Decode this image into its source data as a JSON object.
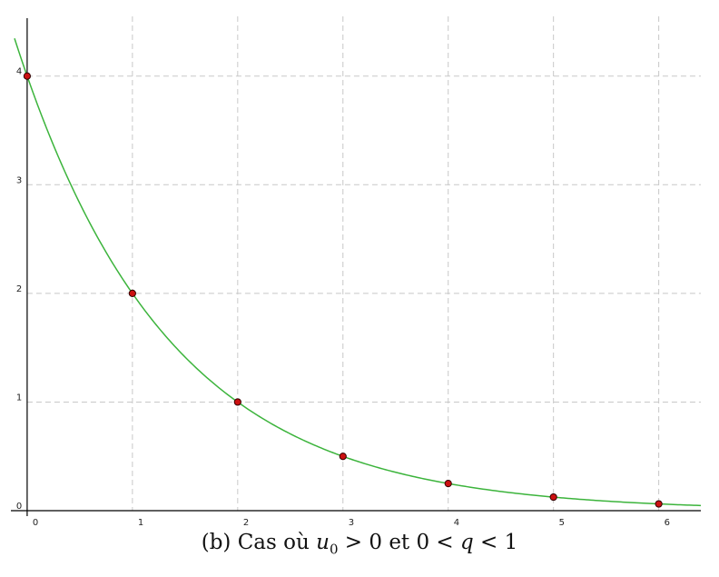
{
  "chart_data": {
    "type": "scatter",
    "x_ticks": [
      "0",
      "1",
      "2",
      "3",
      "4",
      "5",
      "6"
    ],
    "y_ticks": [
      "0",
      "1",
      "2",
      "3",
      "4"
    ],
    "xlim": [
      -0.12,
      6.4
    ],
    "ylim": [
      -0.05,
      4.6
    ],
    "grid": true,
    "curve": {
      "formula": "4 * 0.5^x",
      "color": "#3cb43c"
    },
    "points": [
      {
        "x": 0,
        "y": 4
      },
      {
        "x": 1,
        "y": 2
      },
      {
        "x": 2,
        "y": 1
      },
      {
        "x": 3,
        "y": 0.5
      },
      {
        "x": 4,
        "y": 0.25
      },
      {
        "x": 5,
        "y": 0.125
      },
      {
        "x": 6,
        "y": 0.0625
      }
    ],
    "point_color": "#cc1111",
    "caption": {
      "prefix": "(b) Cas où ",
      "var1": "u",
      "var1_sub": "0",
      "middle": " > 0 et 0 < ",
      "var2": "q",
      "suffix": " < 1"
    }
  }
}
